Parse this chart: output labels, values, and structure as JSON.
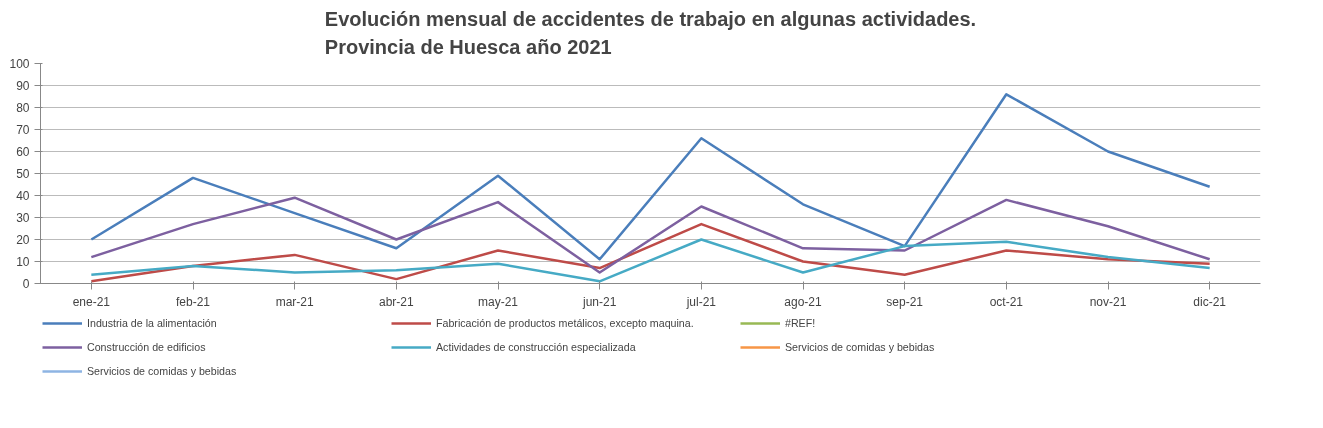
{
  "chart_data": {
    "type": "line",
    "title": "Evolución mensual de accidentes de trabajo en algunas actividades.\nProvincia de Huesca año 2021",
    "categories": [
      "ene-21",
      "feb-21",
      "mar-21",
      "abr-21",
      "may-21",
      "jun-21",
      "jul-21",
      "ago-21",
      "sep-21",
      "oct-21",
      "nov-21",
      "dic-21"
    ],
    "series": [
      {
        "name": "Industria de la alimentación",
        "color": "#4a7ebb",
        "values": [
          20,
          48,
          32,
          16,
          49,
          11,
          66,
          36,
          17,
          86,
          60,
          44
        ]
      },
      {
        "name": "Fabricación de productos metálicos, excepto maquina.",
        "color": "#be4b48",
        "values": [
          1,
          8,
          13,
          2,
          15,
          7,
          27,
          10,
          4,
          15,
          11,
          9
        ]
      },
      {
        "name": "#REF!",
        "color": "#98b954",
        "values": [
          null,
          null,
          null,
          null,
          null,
          null,
          null,
          null,
          null,
          null,
          null,
          null
        ]
      },
      {
        "name": "Construcción de edificios",
        "color": "#7d60a0",
        "values": [
          12,
          27,
          39,
          20,
          37,
          5,
          35,
          16,
          15,
          38,
          26,
          11
        ]
      },
      {
        "name": "Actividades de construcción especializada",
        "color": "#46aac5",
        "values": [
          4,
          8,
          5,
          6,
          9,
          1,
          20,
          5,
          17,
          19,
          12,
          7
        ]
      },
      {
        "name": "Servicios de comidas y bebidas",
        "color": "#f79646",
        "values": [
          null,
          null,
          null,
          null,
          null,
          null,
          null,
          null,
          null,
          null,
          null,
          null
        ]
      },
      {
        "name": "Servicios de comidas y bebidas",
        "color": "#8eb4e3",
        "values": [
          null,
          null,
          null,
          null,
          null,
          null,
          null,
          null,
          null,
          null,
          null,
          null
        ]
      }
    ],
    "ylim": [
      0,
      100
    ],
    "yticks": [
      0,
      10,
      20,
      30,
      40,
      50,
      60,
      70,
      80,
      90,
      100
    ],
    "grid": "y",
    "legend": "bottom",
    "marker": "none",
    "line_style": "solid"
  }
}
